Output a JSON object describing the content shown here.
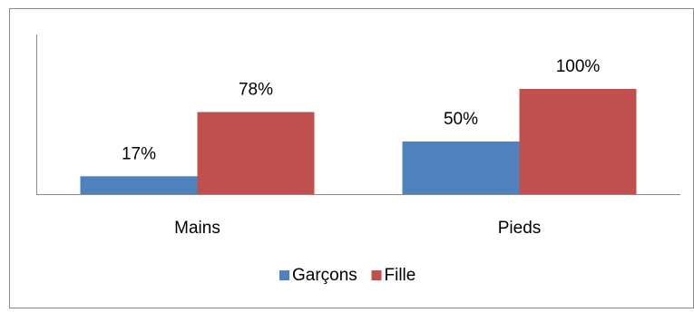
{
  "chart_data": {
    "type": "bar",
    "categories": [
      "Mains",
      "Pieds"
    ],
    "series": [
      {
        "name": "Garçons",
        "values": [
          17,
          50
        ],
        "labels": [
          "17%",
          "50%"
        ],
        "color": "#4F81BD"
      },
      {
        "name": "Fille",
        "values": [
          78,
          100
        ],
        "labels": [
          "78%",
          "100%"
        ],
        "color": "#C0504D"
      }
    ],
    "title": "",
    "xlabel": "",
    "ylabel": "",
    "ylim": [
      0,
      100
    ],
    "grid": false,
    "legend": "bottom-center",
    "value_unit": "%"
  }
}
